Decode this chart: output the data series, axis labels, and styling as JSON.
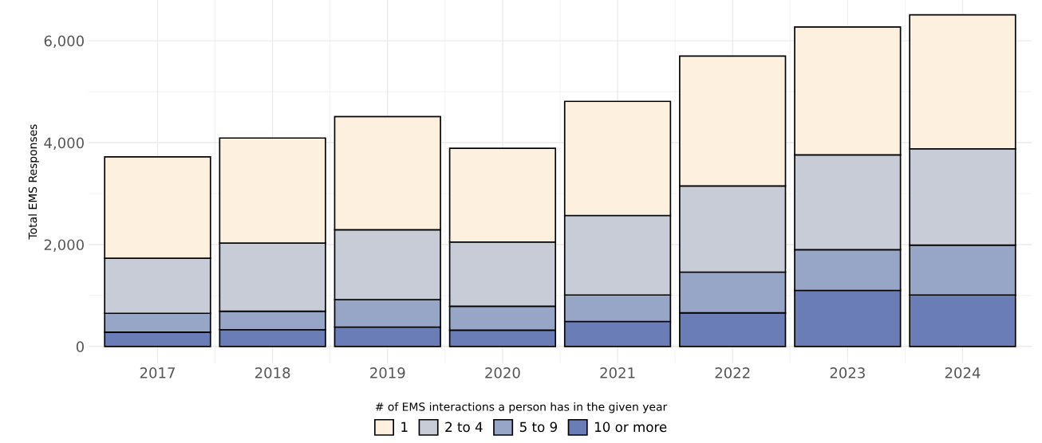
{
  "chart_data": {
    "type": "bar",
    "stacked": true,
    "ylabel": "Total EMS Responses",
    "legend_title": "# of EMS interactions a person has in the given year",
    "legend": "bottom",
    "grid": true,
    "categories": [
      "2017",
      "2018",
      "2019",
      "2020",
      "2021",
      "2022",
      "2023",
      "2024"
    ],
    "ylim": [
      -330,
      6800
    ],
    "yticks": [
      0,
      {
        "value": 2000,
        "label": "2,000"
      },
      {
        "value": 4000,
        "label": "4,000"
      },
      {
        "value": 6000,
        "label": "6,000"
      }
    ],
    "series": [
      {
        "name": "10 or more",
        "color": "#6a7db7",
        "values": [
          280,
          330,
          380,
          320,
          490,
          660,
          1100,
          1010
        ]
      },
      {
        "name": "5 to 9",
        "color": "#97a5c6",
        "values": [
          370,
          360,
          540,
          470,
          520,
          800,
          800,
          980
        ]
      },
      {
        "name": "2 to 4",
        "color": "#c8ccd6",
        "values": [
          1080,
          1340,
          1370,
          1260,
          1560,
          1690,
          1860,
          1890
        ]
      },
      {
        "name": "1",
        "color": "#fdf0df",
        "values": [
          1990,
          2060,
          2220,
          1840,
          2240,
          2550,
          2510,
          2630
        ]
      }
    ]
  }
}
